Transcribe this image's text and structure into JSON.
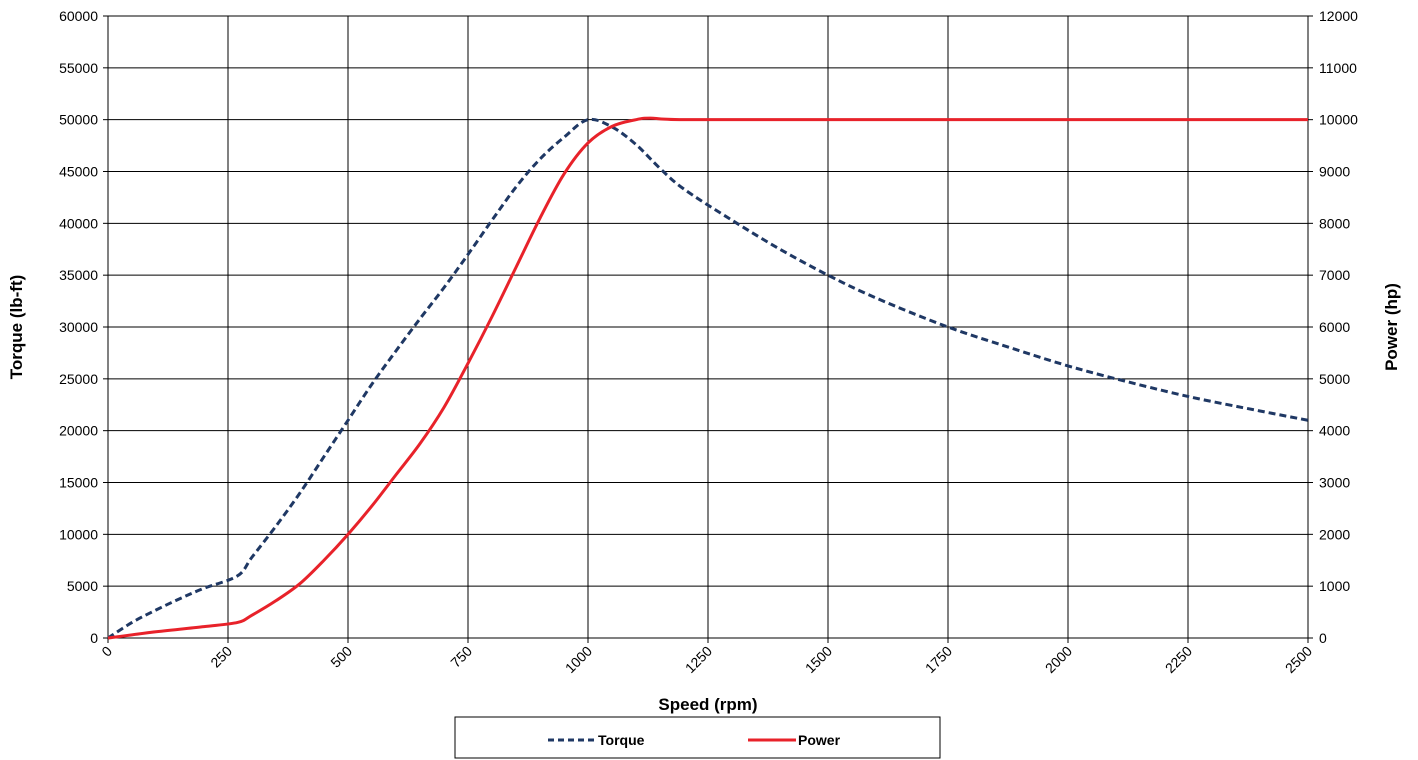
{
  "chart_data": {
    "type": "line",
    "title": "",
    "xlabel": "Speed (rpm)",
    "ylabel": "Torque (lb-ft)",
    "y2label": "Power (hp)",
    "xlim": [
      0,
      2500
    ],
    "ylim": [
      0,
      60000
    ],
    "y2lim": [
      0,
      12000
    ],
    "xticks": [
      "0",
      "250",
      "500",
      "750",
      "1000",
      "1250",
      "1500",
      "1750",
      "2000",
      "2250",
      "2500"
    ],
    "yticks": [
      "0",
      "5000",
      "10000",
      "15000",
      "20000",
      "25000",
      "30000",
      "35000",
      "40000",
      "45000",
      "50000",
      "55000",
      "60000"
    ],
    "y2ticks": [
      "0",
      "1000",
      "2000",
      "3000",
      "4000",
      "5000",
      "6000",
      "7000",
      "8000",
      "9000",
      "10000",
      "11000",
      "12000"
    ],
    "grid": true,
    "legend": "bottom",
    "series": [
      {
        "name": "Torque",
        "axis": "left",
        "color": "#1f3864",
        "style": "dashed",
        "points": [
          [
            0,
            0
          ],
          [
            50,
            1500
          ],
          [
            100,
            2700
          ],
          [
            150,
            3800
          ],
          [
            200,
            4800
          ],
          [
            270,
            6000
          ],
          [
            300,
            7800
          ],
          [
            350,
            10800
          ],
          [
            400,
            14000
          ],
          [
            450,
            17500
          ],
          [
            500,
            21000
          ],
          [
            550,
            24500
          ],
          [
            600,
            27700
          ],
          [
            650,
            30800
          ],
          [
            700,
            33800
          ],
          [
            750,
            37000
          ],
          [
            800,
            40300
          ],
          [
            850,
            43500
          ],
          [
            900,
            46200
          ],
          [
            950,
            48300
          ],
          [
            1000,
            50000
          ],
          [
            1050,
            49300
          ],
          [
            1100,
            47600
          ],
          [
            1150,
            45300
          ],
          [
            1200,
            43300
          ],
          [
            1300,
            40300
          ],
          [
            1400,
            37500
          ],
          [
            1500,
            35000
          ],
          [
            1600,
            32800
          ],
          [
            1750,
            30000
          ],
          [
            1900,
            27700
          ],
          [
            2000,
            26250
          ],
          [
            2100,
            25000
          ],
          [
            2250,
            23300
          ],
          [
            2400,
            21900
          ],
          [
            2500,
            21000
          ]
        ]
      },
      {
        "name": "Power",
        "axis": "right",
        "color": "#e8222a",
        "style": "solid",
        "points": [
          [
            0,
            0
          ],
          [
            100,
            120
          ],
          [
            200,
            220
          ],
          [
            270,
            300
          ],
          [
            300,
            440
          ],
          [
            350,
            720
          ],
          [
            400,
            1050
          ],
          [
            450,
            1500
          ],
          [
            500,
            2000
          ],
          [
            550,
            2550
          ],
          [
            600,
            3150
          ],
          [
            650,
            3750
          ],
          [
            700,
            4450
          ],
          [
            750,
            5300
          ],
          [
            800,
            6200
          ],
          [
            850,
            7150
          ],
          [
            900,
            8100
          ],
          [
            950,
            8950
          ],
          [
            1000,
            9550
          ],
          [
            1050,
            9870
          ],
          [
            1100,
            10000
          ],
          [
            1130,
            10030
          ],
          [
            1200,
            10000
          ],
          [
            1500,
            10000
          ],
          [
            2000,
            10000
          ],
          [
            2500,
            10000
          ]
        ]
      }
    ]
  }
}
